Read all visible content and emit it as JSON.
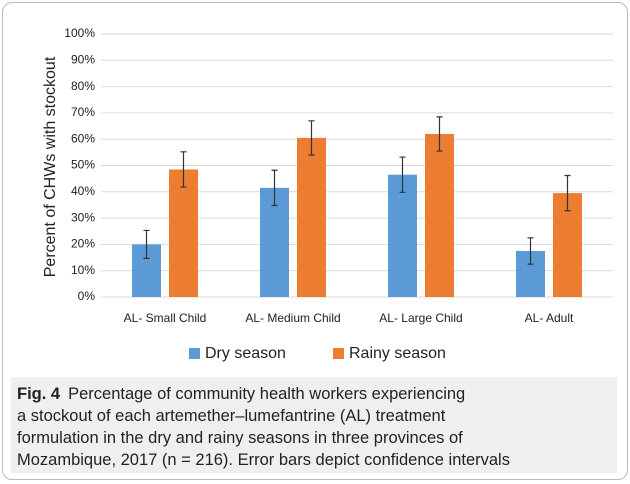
{
  "chart_data": {
    "type": "bar",
    "y_label": "Percent of CHWs with stockout",
    "categories": [
      "AL- Small Child",
      "AL- Medium Child",
      "AL- Large Child",
      "AL- Adult"
    ],
    "series": [
      {
        "name": "Dry season",
        "color": "#5b9bd5",
        "values": [
          20,
          41.5,
          46.5,
          17.5
        ],
        "errors": [
          5.3,
          6.7,
          6.7,
          5
        ]
      },
      {
        "name": "Rainy season",
        "color": "#ed7d31",
        "values": [
          48.5,
          60.5,
          62,
          39.5
        ],
        "errors": [
          6.7,
          6.5,
          6.5,
          6.7
        ]
      }
    ],
    "ylim": [
      0,
      100
    ],
    "yticks": [
      {
        "value": 0,
        "label": "0%"
      },
      {
        "value": 10,
        "label": "10%"
      },
      {
        "value": 20,
        "label": "20%"
      },
      {
        "value": 30,
        "label": "30%"
      },
      {
        "value": 40,
        "label": "40%"
      },
      {
        "value": 50,
        "label": "50%"
      },
      {
        "value": 60,
        "label": "60%"
      },
      {
        "value": 70,
        "label": "70%"
      },
      {
        "value": 80,
        "label": "80%"
      },
      {
        "value": 90,
        "label": "90%"
      },
      {
        "value": 100,
        "label": "100%"
      }
    ],
    "grid": true
  },
  "caption": {
    "label": "Fig. 4",
    "lines": [
      "Percentage of community health workers experiencing",
      "a stockout of each artemether–lumefantrine (AL) treatment",
      "formulation in the dry and rainy seasons in three provinces of",
      "Mozambique, 2017 (n = 216). Error bars depict confidence intervals"
    ]
  }
}
